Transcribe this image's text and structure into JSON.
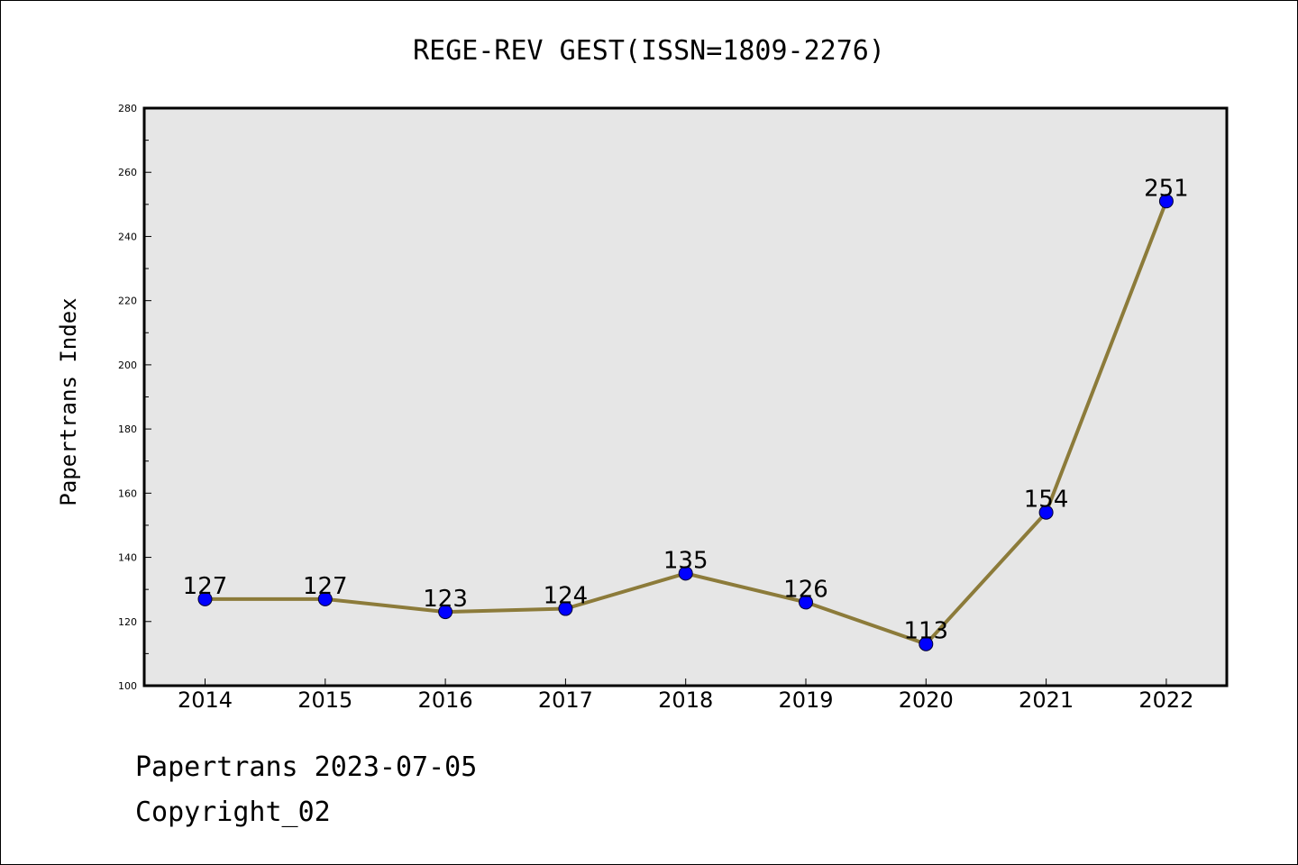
{
  "chart_data": {
    "type": "line",
    "title": "REGE-REV GEST(ISSN=1809-2276)",
    "xlabel": "",
    "ylabel": "Papertrans Index",
    "categories": [
      "2014",
      "2015",
      "2016",
      "2017",
      "2018",
      "2019",
      "2020",
      "2021",
      "2022"
    ],
    "series": [
      {
        "values": [
          127,
          127,
          123,
          124,
          135,
          126,
          113,
          154,
          251
        ]
      }
    ],
    "data_labels": [
      "127",
      "127",
      "123",
      "124",
      "135",
      "126",
      "113",
      "154",
      "251"
    ],
    "ylim": [
      100,
      280
    ],
    "yticks": [
      "100",
      "120",
      "140",
      "160",
      "180",
      "200",
      "220",
      "240",
      "260",
      "280"
    ],
    "grid": false,
    "line_color": "#8c7b3a",
    "marker_color": "#0000ff",
    "plot_background": "#e6e6e6"
  },
  "footer": {
    "date_line": "Papertrans 2023-07-05",
    "copyright": "Copyright_02"
  }
}
